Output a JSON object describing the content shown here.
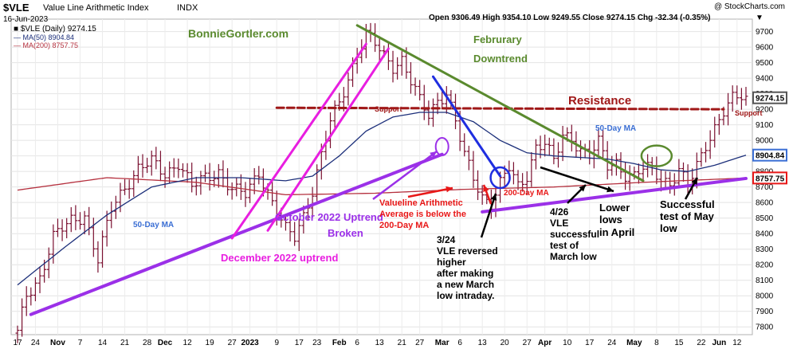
{
  "header": {
    "symbol": "$VLE",
    "name": "Value Line Arithmetic Index",
    "exchange": "INDX",
    "date": "16-Jun-2023",
    "copyright": "@ StockCharts.com",
    "ohlc": "Open 9306.49  High 9354.10  Low 9249.55  Close 9274.15  Chg -32.34 (-0.35%)",
    "chg_arrow": "▼"
  },
  "legend": {
    "main": "■ $VLE (Daily) 9274.15",
    "ma50": "— MA(50) 8904.84",
    "ma200": "— MA(200) 8757.75"
  },
  "colors": {
    "price": "#7a1030",
    "ma50": "#1c2f7a",
    "ma200": "#b5303e",
    "magenta": "#e81ee0",
    "purple": "#9b30e8",
    "green": "#5a8a2e",
    "blue": "#1f2ee0",
    "resistance": "#a01818",
    "red": "#e81818",
    "black": "#000000"
  },
  "chart_data": {
    "type": "line",
    "title": "$VLE Value Line Arithmetic Index INDX",
    "ylim": [
      7750,
      9780
    ],
    "y_ticks": [
      7800,
      7900,
      8000,
      8100,
      8200,
      8300,
      8400,
      8500,
      8600,
      8700,
      8800,
      8900,
      9000,
      9100,
      9200,
      9300,
      9400,
      9500,
      9600,
      9700
    ],
    "x_ticks": [
      "17",
      "24",
      "Nov",
      "7",
      "14",
      "21",
      "28",
      "Dec",
      "12",
      "19",
      "27",
      "2023",
      "9",
      "17",
      "23",
      "Feb",
      "6",
      "13",
      "21",
      "27",
      "Mar",
      "6",
      "13",
      "20",
      "27",
      "Apr",
      "10",
      "17",
      "24",
      "May",
      "8",
      "15",
      "22",
      "Jun",
      "12"
    ],
    "price_knots": [
      [
        0,
        7760
      ],
      [
        2,
        8000
      ],
      [
        5,
        8120
      ],
      [
        8,
        8380
      ],
      [
        12,
        8480
      ],
      [
        15,
        8520
      ],
      [
        18,
        8230
      ],
      [
        21,
        8560
      ],
      [
        24,
        8700
      ],
      [
        27,
        8820
      ],
      [
        30,
        8860
      ],
      [
        33,
        8780
      ],
      [
        36,
        8860
      ],
      [
        39,
        8700
      ],
      [
        42,
        8760
      ],
      [
        45,
        8800
      ],
      [
        48,
        8680
      ],
      [
        51,
        8650
      ],
      [
        54,
        8800
      ],
      [
        57,
        8600
      ],
      [
        60,
        8420
      ],
      [
        62,
        8380
      ],
      [
        64,
        8520
      ],
      [
        66,
        8680
      ],
      [
        68,
        8900
      ],
      [
        70,
        9120
      ],
      [
        72,
        9240
      ],
      [
        74,
        9400
      ],
      [
        76,
        9560
      ],
      [
        78,
        9680
      ],
      [
        80,
        9620
      ],
      [
        82,
        9540
      ],
      [
        84,
        9480
      ],
      [
        86,
        9520
      ],
      [
        88,
        9380
      ],
      [
        90,
        9250
      ],
      [
        92,
        9160
      ],
      [
        94,
        9260
      ],
      [
        96,
        9310
      ],
      [
        98,
        9120
      ],
      [
        100,
        8900
      ],
      [
        102,
        8760
      ],
      [
        104,
        8640
      ],
      [
        106,
        8600
      ],
      [
        108,
        8720
      ],
      [
        110,
        8820
      ],
      [
        112,
        8700
      ],
      [
        114,
        8780
      ],
      [
        116,
        8960
      ],
      [
        118,
        8980
      ],
      [
        120,
        8860
      ],
      [
        122,
        9030
      ],
      [
        124,
        9020
      ],
      [
        126,
        8940
      ],
      [
        128,
        8900
      ],
      [
        130,
        8980
      ],
      [
        132,
        8840
      ],
      [
        134,
        8860
      ],
      [
        136,
        8780
      ],
      [
        138,
        8760
      ],
      [
        140,
        8820
      ],
      [
        142,
        8820
      ],
      [
        144,
        8760
      ],
      [
        146,
        8720
      ],
      [
        148,
        8800
      ],
      [
        150,
        8700
      ],
      [
        152,
        8840
      ],
      [
        154,
        8980
      ],
      [
        156,
        9080
      ],
      [
        158,
        9180
      ],
      [
        160,
        9260
      ],
      [
        162,
        9290
      ],
      [
        163,
        9274
      ]
    ],
    "ma50_knots": [
      [
        0,
        8070
      ],
      [
        10,
        8300
      ],
      [
        20,
        8520
      ],
      [
        30,
        8700
      ],
      [
        40,
        8760
      ],
      [
        50,
        8760
      ],
      [
        60,
        8740
      ],
      [
        66,
        8770
      ],
      [
        72,
        8900
      ],
      [
        78,
        9060
      ],
      [
        84,
        9150
      ],
      [
        90,
        9180
      ],
      [
        96,
        9180
      ],
      [
        102,
        9120
      ],
      [
        108,
        9000
      ],
      [
        114,
        8920
      ],
      [
        120,
        8900
      ],
      [
        126,
        8890
      ],
      [
        132,
        8880
      ],
      [
        138,
        8850
      ],
      [
        144,
        8810
      ],
      [
        150,
        8800
      ],
      [
        156,
        8840
      ],
      [
        163,
        8905
      ]
    ],
    "ma200_knots": [
      [
        0,
        8680
      ],
      [
        20,
        8760
      ],
      [
        40,
        8730
      ],
      [
        60,
        8650
      ],
      [
        80,
        8660
      ],
      [
        100,
        8685
      ],
      [
        120,
        8700
      ],
      [
        140,
        8730
      ],
      [
        163,
        8758
      ]
    ],
    "last_price": "9274.15",
    "ma50_last": "8904.84",
    "ma200_last": "8757.75",
    "annotations": [
      "BonnieGortler.com",
      "Februrary",
      "Downtrend",
      "Resistance",
      "Support",
      "Support",
      "50-Day MA",
      "50-Day MA",
      "200-Day MA",
      "October 2022 Uptrend",
      "Broken",
      "Valueline Arithmetic",
      "Average is below the",
      "200-Day MA",
      "December 2022 uptrend",
      "3/24",
      "VLE reversed",
      "higher",
      "after making",
      "a new March",
      "low intraday.",
      "4/26",
      "VLE",
      "successful",
      "test of",
      "March low",
      "Lower",
      "lows",
      "in April",
      "Successful",
      "test of May",
      "low"
    ]
  }
}
